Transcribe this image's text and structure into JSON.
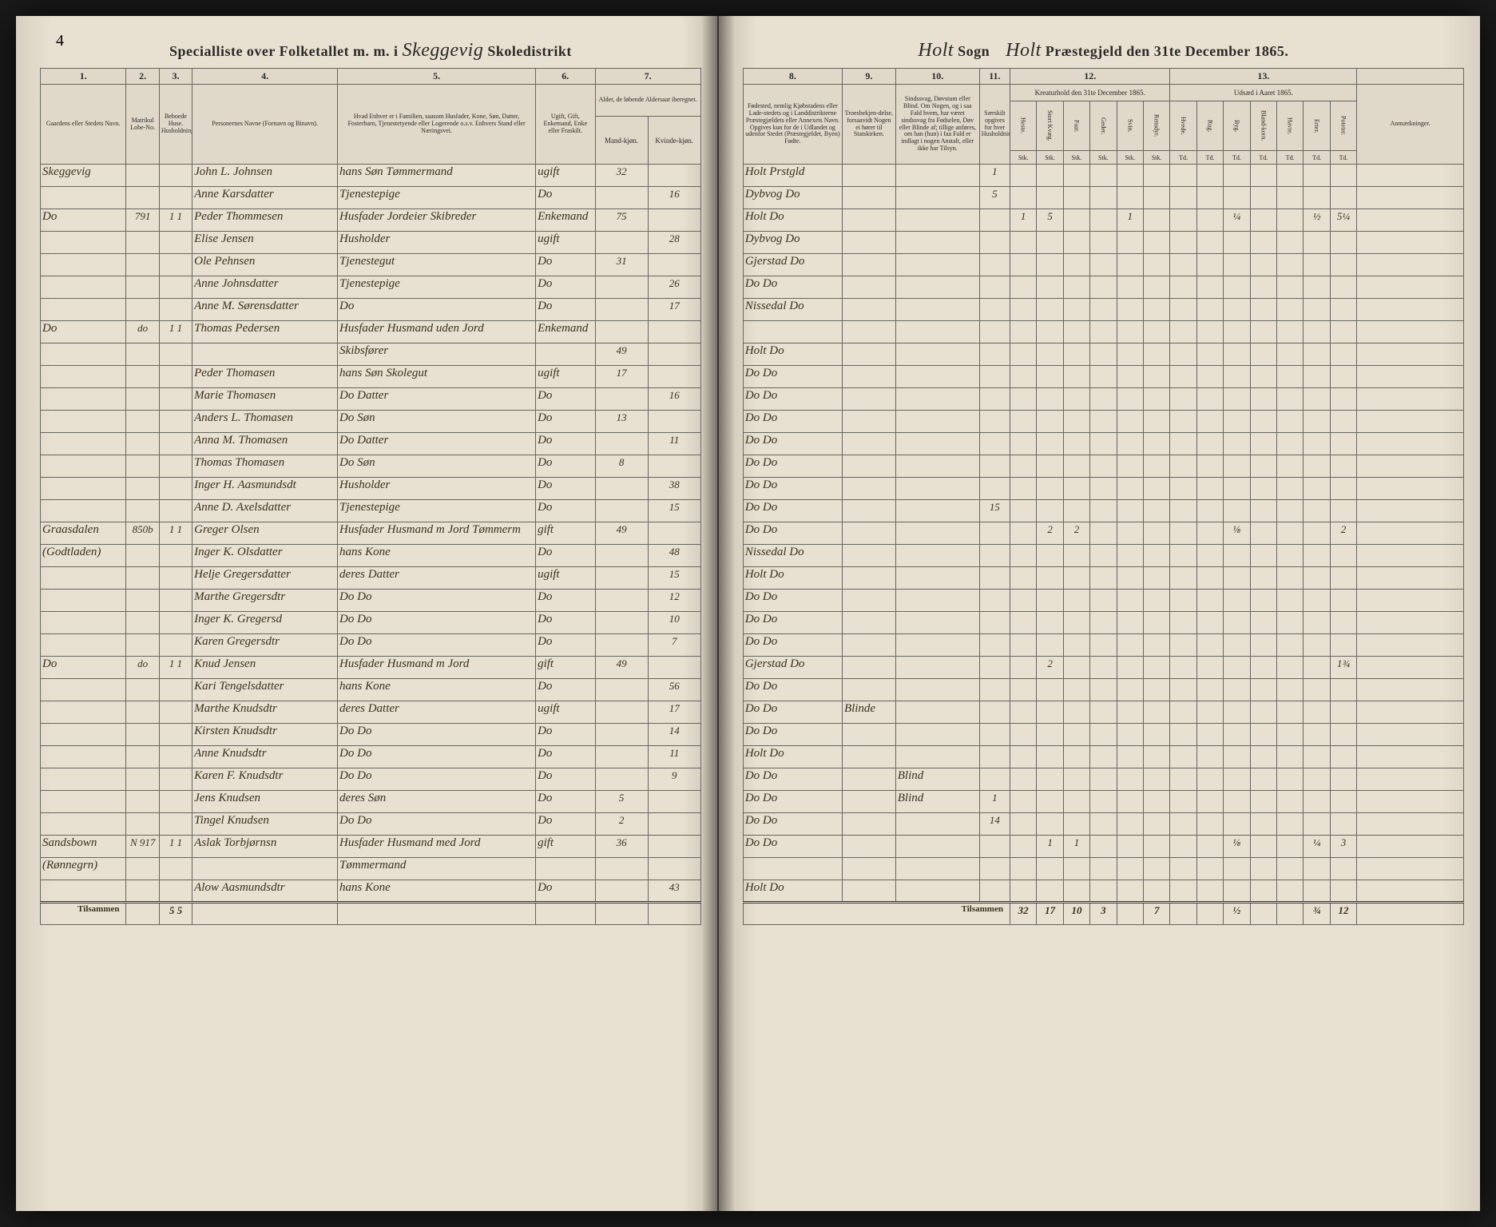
{
  "pageNumber": "4",
  "header": {
    "left_prefix": "Specialliste over Folketallet m. m. i",
    "district": "Skeggevig",
    "left_suffix": "Skoledistrikt",
    "sogn_label": "Sogn",
    "sogn": "Holt",
    "prestegjeld": "Holt",
    "right_suffix": "Præstegjeld den 31te December 1865."
  },
  "columns_left": {
    "c1": "1.",
    "c2": "2.",
    "c3": "3.",
    "c4": "4.",
    "c5": "5.",
    "c6": "6.",
    "c7": "7.",
    "h1": "Gaardens eller Stedets Navn.",
    "h2": "Matrikul Lobe-No.",
    "h3": "Beboede Huse. Husholdninger.",
    "h4": "Personernes Navne (Fornavn og Binavn).",
    "h5": "Hvad Enhver er i Familien, saasom Husfader, Kone, Søn, Datter, Fosterbarn, Tjenestetyende eller Logerende o.s.v. Enhvers Stand eller Næringsvei.",
    "h6": "Ugift, Gift, Enkemand, Enke eller Fraskilt.",
    "h7a": "Mand-kjøn.",
    "h7b": "Kvinde-kjøn.",
    "h7": "Alder, de løbende Aldersaar iberegnet."
  },
  "columns_right": {
    "c8": "8.",
    "c9": "9.",
    "c10": "10.",
    "c11": "11.",
    "c12": "12.",
    "c13": "13.",
    "h8": "Fødested, nemlig Kjøbstadens eller Lade-stedets og i Landdistrikterne Præstegjældets eller Annexets Navn. Opgives kun for de i Udlandet og udenfor Stedet (Præstegjeldet, Byen) Fødte.",
    "h9": "Troesbekjen-delse, forsaavidt Nogen ei hører til Statskirken.",
    "h10": "Sindssvag, Døvstum eller Blind. Om Nogen, og i saa Fald hvem, har været sindssvag fra Fødselen, Døv eller Blinde af; tillige anføres, om han (hun) i faa Fald er indlagt i nogen Anstalt, eller ikke har Tilsyn.",
    "h11": "Særskilt opgives for hver Husholdning.",
    "h12": "Kreaturhold den 31te December 1865.",
    "h13": "Udsæd i Aaret 1865.",
    "hAnm": "Anmærkninger.",
    "sub12": [
      "Heste.",
      "Stort Kvæg.",
      "Faar.",
      "Geder.",
      "Svin.",
      "Rensdyr."
    ],
    "sub13": [
      "Hvede.",
      "Rug.",
      "Byg.",
      "Bland-korn.",
      "Havre.",
      "Erter.",
      "Poteter."
    ],
    "subUnit": [
      "Stk.",
      "Stk.",
      "Stk.",
      "Stk.",
      "Stk.",
      "Stk.",
      "Td.",
      "Td.",
      "Td.",
      "Td.",
      "Td.",
      "Td.",
      "Td."
    ]
  },
  "rows": [
    {
      "sted": "Skeggevig",
      "mno": "",
      "hus": "",
      "navn": "John L. Johnsen",
      "stand": "hans Søn Tømmermand",
      "giv": "ugift",
      "mk": "32",
      "kk": "",
      "fode": "Holt Prstgld",
      "tro": "",
      "sind": "",
      "col11": "1",
      "k": [
        "",
        "",
        "",
        "",
        "",
        ""
      ],
      "u": [
        "",
        "",
        "",
        "",
        "",
        "",
        ""
      ]
    },
    {
      "sted": "",
      "mno": "",
      "hus": "",
      "navn": "Anne Karsdatter",
      "stand": "Tjenestepige",
      "giv": "Do",
      "mk": "",
      "kk": "16",
      "fode": "Dybvog Do",
      "tro": "",
      "sind": "",
      "col11": "5",
      "k": [
        "",
        "",
        "",
        "",
        "",
        ""
      ],
      "u": [
        "",
        "",
        "",
        "",
        "",
        "",
        ""
      ]
    },
    {
      "sted": "Do",
      "mno": "791",
      "hus": "1 1",
      "navn": "Peder Thommesen",
      "stand": "Husfader Jordeier Skibreder",
      "giv": "Enkemand",
      "mk": "75",
      "kk": "",
      "fode": "Holt Do",
      "tro": "",
      "sind": "",
      "col11": "",
      "k": [
        "1",
        "5",
        "",
        "",
        "1",
        ""
      ],
      "u": [
        "",
        "",
        "¼",
        "",
        "",
        "½",
        "5¼"
      ]
    },
    {
      "sted": "",
      "mno": "",
      "hus": "",
      "navn": "Elise Jensen",
      "stand": "Husholder",
      "giv": "ugift",
      "mk": "",
      "kk": "28",
      "fode": "Dybvog Do",
      "tro": "",
      "sind": "",
      "col11": "",
      "k": [
        "",
        "",
        "",
        "",
        "",
        ""
      ],
      "u": [
        "",
        "",
        "",
        "",
        "",
        "",
        ""
      ]
    },
    {
      "sted": "",
      "mno": "",
      "hus": "",
      "navn": "Ole Pehnsen",
      "stand": "Tjenestegut",
      "giv": "Do",
      "mk": "31",
      "kk": "",
      "fode": "Gjerstad Do",
      "tro": "",
      "sind": "",
      "col11": "",
      "k": [
        "",
        "",
        "",
        "",
        "",
        ""
      ],
      "u": [
        "",
        "",
        "",
        "",
        "",
        "",
        ""
      ]
    },
    {
      "sted": "",
      "mno": "",
      "hus": "",
      "navn": "Anne Johnsdatter",
      "stand": "Tjenestepige",
      "giv": "Do",
      "mk": "",
      "kk": "26",
      "fode": "Do Do",
      "tro": "",
      "sind": "",
      "col11": "",
      "k": [
        "",
        "",
        "",
        "",
        "",
        ""
      ],
      "u": [
        "",
        "",
        "",
        "",
        "",
        "",
        ""
      ]
    },
    {
      "sted": "",
      "mno": "",
      "hus": "",
      "navn": "Anne M. Sørensdatter",
      "stand": "Do",
      "giv": "Do",
      "mk": "",
      "kk": "17",
      "fode": "Nissedal Do",
      "tro": "",
      "sind": "",
      "col11": "",
      "k": [
        "",
        "",
        "",
        "",
        "",
        ""
      ],
      "u": [
        "",
        "",
        "",
        "",
        "",
        "",
        ""
      ]
    },
    {
      "sted": "Do",
      "mno": "do",
      "hus": "1 1",
      "navn": "Thomas Pedersen",
      "stand": "Husfader Husmand uden Jord",
      "giv": "Enkemand",
      "mk": "",
      "kk": "",
      "fode": "",
      "tro": "",
      "sind": "",
      "col11": "",
      "k": [
        "",
        "",
        "",
        "",
        "",
        ""
      ],
      "u": [
        "",
        "",
        "",
        "",
        "",
        "",
        ""
      ]
    },
    {
      "sted": "",
      "mno": "",
      "hus": "",
      "navn": "",
      "stand": "Skibsfører",
      "giv": "",
      "mk": "49",
      "kk": "",
      "fode": "Holt Do",
      "tro": "",
      "sind": "",
      "col11": "",
      "k": [
        "",
        "",
        "",
        "",
        "",
        ""
      ],
      "u": [
        "",
        "",
        "",
        "",
        "",
        "",
        ""
      ]
    },
    {
      "sted": "",
      "mno": "",
      "hus": "",
      "navn": "Peder Thomasen",
      "stand": "hans Søn Skolegut",
      "giv": "ugift",
      "mk": "17",
      "kk": "",
      "fode": "Do Do",
      "tro": "",
      "sind": "",
      "col11": "",
      "k": [
        "",
        "",
        "",
        "",
        "",
        ""
      ],
      "u": [
        "",
        "",
        "",
        "",
        "",
        "",
        ""
      ]
    },
    {
      "sted": "",
      "mno": "",
      "hus": "",
      "navn": "Marie Thomasen",
      "stand": "Do Datter",
      "giv": "Do",
      "mk": "",
      "kk": "16",
      "fode": "Do Do",
      "tro": "",
      "sind": "",
      "col11": "",
      "k": [
        "",
        "",
        "",
        "",
        "",
        ""
      ],
      "u": [
        "",
        "",
        "",
        "",
        "",
        "",
        ""
      ]
    },
    {
      "sted": "",
      "mno": "",
      "hus": "",
      "navn": "Anders L. Thomasen",
      "stand": "Do Søn",
      "giv": "Do",
      "mk": "13",
      "kk": "",
      "fode": "Do Do",
      "tro": "",
      "sind": "",
      "col11": "",
      "k": [
        "",
        "",
        "",
        "",
        "",
        ""
      ],
      "u": [
        "",
        "",
        "",
        "",
        "",
        "",
        ""
      ]
    },
    {
      "sted": "",
      "mno": "",
      "hus": "",
      "navn": "Anna M. Thomasen",
      "stand": "Do Datter",
      "giv": "Do",
      "mk": "",
      "kk": "11",
      "fode": "Do Do",
      "tro": "",
      "sind": "",
      "col11": "",
      "k": [
        "",
        "",
        "",
        "",
        "",
        ""
      ],
      "u": [
        "",
        "",
        "",
        "",
        "",
        "",
        ""
      ]
    },
    {
      "sted": "",
      "mno": "",
      "hus": "",
      "navn": "Thomas Thomasen",
      "stand": "Do Søn",
      "giv": "Do",
      "mk": "8",
      "kk": "",
      "fode": "Do Do",
      "tro": "",
      "sind": "",
      "col11": "",
      "k": [
        "",
        "",
        "",
        "",
        "",
        ""
      ],
      "u": [
        "",
        "",
        "",
        "",
        "",
        "",
        ""
      ]
    },
    {
      "sted": "",
      "mno": "",
      "hus": "",
      "navn": "Inger H. Aasmundsdt",
      "stand": "Husholder",
      "giv": "Do",
      "mk": "",
      "kk": "38",
      "fode": "Do Do",
      "tro": "",
      "sind": "",
      "col11": "",
      "k": [
        "",
        "",
        "",
        "",
        "",
        ""
      ],
      "u": [
        "",
        "",
        "",
        "",
        "",
        "",
        ""
      ]
    },
    {
      "sted": "",
      "mno": "",
      "hus": "",
      "navn": "Anne D. Axelsdatter",
      "stand": "Tjenestepige",
      "giv": "Do",
      "mk": "",
      "kk": "15",
      "fode": "Do Do",
      "tro": "",
      "sind": "",
      "col11": "15",
      "k": [
        "",
        "",
        "",
        "",
        "",
        ""
      ],
      "u": [
        "",
        "",
        "",
        "",
        "",
        "",
        ""
      ]
    },
    {
      "sted": "Graasdalen",
      "mno": "850b",
      "hus": "1 1",
      "navn": "Greger Olsen",
      "stand": "Husfader Husmand m Jord Tømmerm",
      "giv": "gift",
      "mk": "49",
      "kk": "",
      "fode": "Do Do",
      "tro": "",
      "sind": "",
      "col11": "",
      "k": [
        "",
        "2",
        "2",
        "",
        "",
        ""
      ],
      "u": [
        "",
        "",
        "⅛",
        "",
        "",
        "",
        "2"
      ]
    },
    {
      "sted": "(Godtladen)",
      "mno": "",
      "hus": "",
      "navn": "Inger K. Olsdatter",
      "stand": "hans Kone",
      "giv": "Do",
      "mk": "",
      "kk": "48",
      "fode": "Nissedal Do",
      "tro": "",
      "sind": "",
      "col11": "",
      "k": [
        "",
        "",
        "",
        "",
        "",
        ""
      ],
      "u": [
        "",
        "",
        "",
        "",
        "",
        "",
        ""
      ]
    },
    {
      "sted": "",
      "mno": "",
      "hus": "",
      "navn": "Helje Gregersdatter",
      "stand": "deres Datter",
      "giv": "ugift",
      "mk": "",
      "kk": "15",
      "fode": "Holt Do",
      "tro": "",
      "sind": "",
      "col11": "",
      "k": [
        "",
        "",
        "",
        "",
        "",
        ""
      ],
      "u": [
        "",
        "",
        "",
        "",
        "",
        "",
        ""
      ]
    },
    {
      "sted": "",
      "mno": "",
      "hus": "",
      "navn": "Marthe Gregersdtr",
      "stand": "Do Do",
      "giv": "Do",
      "mk": "",
      "kk": "12",
      "fode": "Do Do",
      "tro": "",
      "sind": "",
      "col11": "",
      "k": [
        "",
        "",
        "",
        "",
        "",
        ""
      ],
      "u": [
        "",
        "",
        "",
        "",
        "",
        "",
        ""
      ]
    },
    {
      "sted": "",
      "mno": "",
      "hus": "",
      "navn": "Inger K. Gregersd",
      "stand": "Do Do",
      "giv": "Do",
      "mk": "",
      "kk": "10",
      "fode": "Do Do",
      "tro": "",
      "sind": "",
      "col11": "",
      "k": [
        "",
        "",
        "",
        "",
        "",
        ""
      ],
      "u": [
        "",
        "",
        "",
        "",
        "",
        "",
        ""
      ]
    },
    {
      "sted": "",
      "mno": "",
      "hus": "",
      "navn": "Karen Gregersdtr",
      "stand": "Do Do",
      "giv": "Do",
      "mk": "",
      "kk": "7",
      "fode": "Do Do",
      "tro": "",
      "sind": "",
      "col11": "",
      "k": [
        "",
        "",
        "",
        "",
        "",
        ""
      ],
      "u": [
        "",
        "",
        "",
        "",
        "",
        "",
        ""
      ]
    },
    {
      "sted": "Do",
      "mno": "do",
      "hus": "1 1",
      "navn": "Knud Jensen",
      "stand": "Husfader Husmand m Jord",
      "giv": "gift",
      "mk": "49",
      "kk": "",
      "fode": "Gjerstad Do",
      "tro": "",
      "sind": "",
      "col11": "",
      "k": [
        "",
        "2",
        "",
        "",
        "",
        ""
      ],
      "u": [
        "",
        "",
        "",
        "",
        "",
        "",
        "1¾"
      ]
    },
    {
      "sted": "",
      "mno": "",
      "hus": "",
      "navn": "Kari Tengelsdatter",
      "stand": "hans Kone",
      "giv": "Do",
      "mk": "",
      "kk": "56",
      "fode": "Do Do",
      "tro": "",
      "sind": "",
      "col11": "",
      "k": [
        "",
        "",
        "",
        "",
        "",
        ""
      ],
      "u": [
        "",
        "",
        "",
        "",
        "",
        "",
        ""
      ]
    },
    {
      "sted": "",
      "mno": "",
      "hus": "",
      "navn": "Marthe Knudsdtr",
      "stand": "deres Datter",
      "giv": "ugift",
      "mk": "",
      "kk": "17",
      "fode": "Do Do",
      "tro": "Blinde",
      "sind": "",
      "col11": "",
      "k": [
        "",
        "",
        "",
        "",
        "",
        ""
      ],
      "u": [
        "",
        "",
        "",
        "",
        "",
        "",
        ""
      ]
    },
    {
      "sted": "",
      "mno": "",
      "hus": "",
      "navn": "Kirsten Knudsdtr",
      "stand": "Do Do",
      "giv": "Do",
      "mk": "",
      "kk": "14",
      "fode": "Do Do",
      "tro": "",
      "sind": "",
      "col11": "",
      "k": [
        "",
        "",
        "",
        "",
        "",
        ""
      ],
      "u": [
        "",
        "",
        "",
        "",
        "",
        "",
        ""
      ]
    },
    {
      "sted": "",
      "mno": "",
      "hus": "",
      "navn": "Anne Knudsdtr",
      "stand": "Do Do",
      "giv": "Do",
      "mk": "",
      "kk": "11",
      "fode": "Holt Do",
      "tro": "",
      "sind": "",
      "col11": "",
      "k": [
        "",
        "",
        "",
        "",
        "",
        ""
      ],
      "u": [
        "",
        "",
        "",
        "",
        "",
        "",
        ""
      ]
    },
    {
      "sted": "",
      "mno": "",
      "hus": "",
      "navn": "Karen F. Knudsdtr",
      "stand": "Do Do",
      "giv": "Do",
      "mk": "",
      "kk": "9",
      "fode": "Do Do",
      "tro": "",
      "sind": "Blind",
      "col11": "",
      "k": [
        "",
        "",
        "",
        "",
        "",
        ""
      ],
      "u": [
        "",
        "",
        "",
        "",
        "",
        "",
        ""
      ]
    },
    {
      "sted": "",
      "mno": "",
      "hus": "",
      "navn": "Jens Knudsen",
      "stand": "deres Søn",
      "giv": "Do",
      "mk": "5",
      "kk": "",
      "fode": "Do Do",
      "tro": "",
      "sind": "Blind",
      "col11": "1",
      "k": [
        "",
        "",
        "",
        "",
        "",
        ""
      ],
      "u": [
        "",
        "",
        "",
        "",
        "",
        "",
        ""
      ]
    },
    {
      "sted": "",
      "mno": "",
      "hus": "",
      "navn": "Tingel Knudsen",
      "stand": "Do Do",
      "giv": "Do",
      "mk": "2",
      "kk": "",
      "fode": "Do Do",
      "tro": "",
      "sind": "",
      "col11": "14",
      "k": [
        "",
        "",
        "",
        "",
        "",
        ""
      ],
      "u": [
        "",
        "",
        "",
        "",
        "",
        "",
        ""
      ]
    },
    {
      "sted": "Sandsbown",
      "mno": "N 917",
      "hus": "1 1",
      "navn": "Aslak Torbjørnsn",
      "stand": "Husfader Husmand med Jord",
      "giv": "gift",
      "mk": "36",
      "kk": "",
      "fode": "Do Do",
      "tro": "",
      "sind": "",
      "col11": "",
      "k": [
        "",
        "1",
        "1",
        "",
        "",
        ""
      ],
      "u": [
        "",
        "",
        "⅛",
        "",
        "",
        "¼",
        "3"
      ]
    },
    {
      "sted": "(Rønnegrn)",
      "mno": "",
      "hus": "",
      "navn": "",
      "stand": "Tømmermand",
      "giv": "",
      "mk": "",
      "kk": "",
      "fode": "",
      "tro": "",
      "sind": "",
      "col11": "",
      "k": [
        "",
        "",
        "",
        "",
        "",
        ""
      ],
      "u": [
        "",
        "",
        "",
        "",
        "",
        "",
        ""
      ]
    },
    {
      "sted": "",
      "mno": "",
      "hus": "",
      "navn": "Alow Aasmundsdtr",
      "stand": "hans Kone",
      "giv": "Do",
      "mk": "",
      "kk": "43",
      "fode": "Holt Do",
      "tro": "",
      "sind": "",
      "col11": "",
      "k": [
        "",
        "",
        "",
        "",
        "",
        ""
      ],
      "u": [
        "",
        "",
        "",
        "",
        "",
        "",
        ""
      ]
    }
  ],
  "footer": {
    "label_left": "Tilsammen",
    "label_right": "Tilsammen",
    "hus_total": "5 5",
    "k_totals": [
      "32",
      "17",
      "10",
      "3",
      "",
      "7"
    ],
    "u_totals": [
      "",
      "",
      "½",
      "",
      "",
      "¾",
      "12"
    ]
  }
}
